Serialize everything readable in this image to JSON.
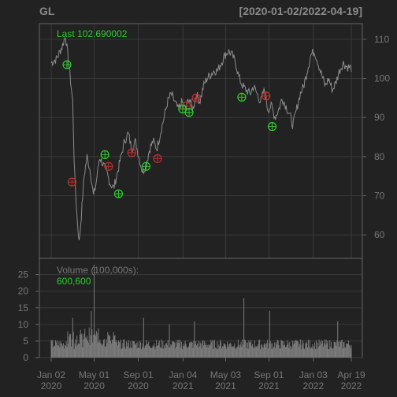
{
  "chart_data": {
    "type": "candlestick",
    "symbol": "GL",
    "date_range_label": "[2020-01-02/2022-04-19]",
    "last_label": "Last 102.690002",
    "volume_label": "Volume (100,000s):",
    "volume_last": "600,600",
    "price_axis": {
      "ylim": [
        54,
        114
      ],
      "ticks": [
        60,
        70,
        80,
        90,
        100,
        110
      ]
    },
    "volume_axis": {
      "ylim": [
        0,
        28
      ],
      "ticks": [
        0,
        5,
        10,
        15,
        20,
        25
      ]
    },
    "x_ticks": [
      {
        "day": 0,
        "month": "Jan 02",
        "year": "2020"
      },
      {
        "day": 120,
        "month": "May 01",
        "year": "2020"
      },
      {
        "day": 243,
        "month": "Sep 01",
        "year": "2020"
      },
      {
        "day": 368,
        "month": "Jan 04",
        "year": "2021"
      },
      {
        "day": 487,
        "month": "May 03",
        "year": "2021"
      },
      {
        "day": 608,
        "month": "Sep 01",
        "year": "2021"
      },
      {
        "day": 732,
        "month": "Jan 03",
        "year": "2022"
      },
      {
        "day": 838,
        "month": "Apr 19",
        "year": "2022"
      }
    ],
    "total_days": 838,
    "price_path": [
      [
        0,
        104
      ],
      [
        15,
        105
      ],
      [
        30,
        108
      ],
      [
        40,
        111
      ],
      [
        50,
        103
      ],
      [
        60,
        94
      ],
      [
        65,
        76
      ],
      [
        72,
        65
      ],
      [
        78,
        58
      ],
      [
        85,
        66
      ],
      [
        92,
        75
      ],
      [
        100,
        80
      ],
      [
        110,
        76
      ],
      [
        118,
        70
      ],
      [
        125,
        73
      ],
      [
        135,
        80
      ],
      [
        145,
        78
      ],
      [
        155,
        76
      ],
      [
        165,
        73
      ],
      [
        175,
        72
      ],
      [
        185,
        76
      ],
      [
        195,
        80
      ],
      [
        205,
        84
      ],
      [
        215,
        86
      ],
      [
        225,
        82
      ],
      [
        235,
        84
      ],
      [
        245,
        80
      ],
      [
        255,
        76
      ],
      [
        265,
        78
      ],
      [
        275,
        82
      ],
      [
        285,
        84
      ],
      [
        295,
        82
      ],
      [
        305,
        86
      ],
      [
        315,
        90
      ],
      [
        325,
        94
      ],
      [
        335,
        96
      ],
      [
        345,
        94
      ],
      [
        355,
        92
      ],
      [
        365,
        94
      ],
      [
        375,
        92
      ],
      [
        385,
        95
      ],
      [
        395,
        92
      ],
      [
        405,
        96
      ],
      [
        415,
        94
      ],
      [
        425,
        98
      ],
      [
        435,
        100
      ],
      [
        445,
        101
      ],
      [
        455,
        102
      ],
      [
        465,
        102
      ],
      [
        475,
        104
      ],
      [
        485,
        106
      ],
      [
        495,
        107
      ],
      [
        505,
        106
      ],
      [
        515,
        104
      ],
      [
        525,
        100
      ],
      [
        535,
        98
      ],
      [
        545,
        97
      ],
      [
        555,
        96
      ],
      [
        565,
        98
      ],
      [
        575,
        96
      ],
      [
        585,
        94
      ],
      [
        595,
        97
      ],
      [
        605,
        92
      ],
      [
        615,
        93
      ],
      [
        625,
        90
      ],
      [
        635,
        92
      ],
      [
        645,
        95
      ],
      [
        655,
        93
      ],
      [
        665,
        91
      ],
      [
        675,
        88
      ],
      [
        685,
        92
      ],
      [
        695,
        96
      ],
      [
        705,
        98
      ],
      [
        715,
        102
      ],
      [
        725,
        106
      ],
      [
        735,
        107
      ],
      [
        745,
        104
      ],
      [
        755,
        101
      ],
      [
        765,
        98
      ],
      [
        775,
        100
      ],
      [
        785,
        97
      ],
      [
        795,
        99
      ],
      [
        805,
        102
      ],
      [
        815,
        104
      ],
      [
        825,
        103
      ],
      [
        838,
        102.69
      ]
    ],
    "green_markers": [
      {
        "day": 44,
        "price": 103.5
      },
      {
        "day": 150,
        "price": 80.5
      },
      {
        "day": 188,
        "price": 70.5
      },
      {
        "day": 265,
        "price": 77.5
      },
      {
        "day": 367,
        "price": 92.2
      },
      {
        "day": 385,
        "price": 91.3
      },
      {
        "day": 532,
        "price": 95.2
      },
      {
        "day": 617,
        "price": 87.7
      }
    ],
    "red_markers": [
      {
        "day": 58,
        "price": 73.5
      },
      {
        "day": 160,
        "price": 77.5
      },
      {
        "day": 225,
        "price": 81.0
      },
      {
        "day": 297,
        "price": 79.5
      },
      {
        "day": 378,
        "price": 93.0
      },
      {
        "day": 405,
        "price": 95.0
      },
      {
        "day": 600,
        "price": 95.5
      }
    ],
    "volume_spikes": [
      {
        "day": 120,
        "value": 28
      },
      {
        "day": 112,
        "value": 14
      },
      {
        "day": 60,
        "value": 12
      },
      {
        "day": 258,
        "value": 12
      },
      {
        "day": 330,
        "value": 10
      },
      {
        "day": 400,
        "value": 11
      },
      {
        "day": 538,
        "value": 18
      },
      {
        "day": 610,
        "value": 14
      },
      {
        "day": 727,
        "value": 13
      },
      {
        "day": 800,
        "value": 11
      }
    ]
  },
  "colors": {
    "background": "#222222",
    "panel_border": "#666666",
    "grid": "#3a3a3a",
    "text": "#777777",
    "title": "#8a8a8a",
    "price_line": "#8c8c8c",
    "green": "#2ecc2e",
    "red": "#c0302e",
    "volume_bar": "#7a7a7a"
  }
}
